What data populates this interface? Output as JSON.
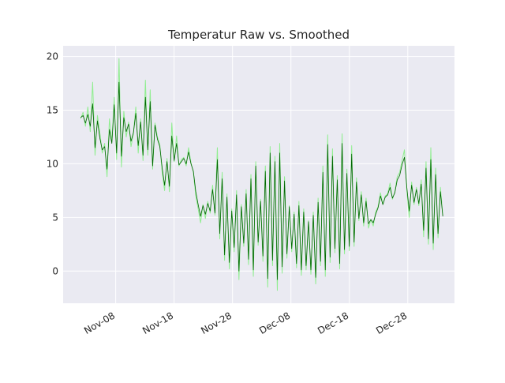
{
  "chart_data": {
    "type": "line",
    "title": "Temperatur Raw vs. Smoothed",
    "xlabel": "",
    "ylabel": "",
    "x_start": "2018-11-02",
    "x_end": "2019-01-03",
    "xlim": [
      "2018-10-30",
      "2019-01-05"
    ],
    "ylim": [
      -3,
      21
    ],
    "y_ticks": [
      0,
      5,
      10,
      15,
      20
    ],
    "x_ticks": [
      {
        "date": "2018-11-08",
        "label": "Nov-08"
      },
      {
        "date": "2018-11-18",
        "label": "Nov-18"
      },
      {
        "date": "2018-11-28",
        "label": "Nov-28"
      },
      {
        "date": "2018-12-08",
        "label": "Dec-08"
      },
      {
        "date": "2018-12-18",
        "label": "Dec-18"
      },
      {
        "date": "2018-12-28",
        "label": "Dec-28"
      }
    ],
    "grid": true,
    "legend": false,
    "style": {
      "background": "#eaeaf2",
      "grid_color": "#ffffff",
      "raw_color": "#90ee90",
      "smoothed_color": "#006400"
    },
    "series": [
      {
        "id": "raw",
        "color": "#90ee90",
        "values": [
          14.2,
          14.8,
          13.5,
          15.3,
          13.0,
          17.6,
          10.8,
          14.5,
          12.9,
          11.0,
          11.9,
          8.8,
          14.2,
          12.0,
          16.2,
          10.4,
          19.8,
          9.7,
          14.9,
          12.5,
          13.9,
          11.6,
          12.8,
          15.3,
          11.0,
          14.2,
          10.3,
          17.8,
          10.8,
          16.9,
          9.5,
          13.8,
          12.5,
          11.8,
          9.2,
          7.5,
          10.5,
          7.4,
          13.8,
          10.2,
          12.6,
          9.8,
          10.4,
          10.6,
          9.8,
          11.5,
          10.1,
          9.2,
          7.0,
          5.8,
          4.5,
          6.2,
          4.9,
          6.5,
          5.4,
          8.0,
          5.2,
          11.5,
          3.0,
          9.2,
          1.0,
          7.2,
          0.2,
          5.8,
          1.8,
          7.5,
          -0.8,
          6.2,
          2.3,
          7.6,
          0.6,
          9.0,
          -0.5,
          10.2,
          2.4,
          6.7,
          0.9,
          9.8,
          -1.5,
          11.6,
          0.5,
          10.7,
          -1.8,
          11.9,
          -0.2,
          8.8,
          1.2,
          6.1,
          1.8,
          5.5,
          0.3,
          6.5,
          -0.4,
          5.8,
          0.1,
          4.7,
          -0.3,
          5.5,
          -1.2,
          6.8,
          0.5,
          9.8,
          -0.5,
          12.7,
          0.8,
          11.4,
          1.7,
          8.9,
          0.2,
          12.8,
          1.6,
          9.5,
          1.9,
          11.7,
          2.3,
          8.7,
          4.7,
          7.4,
          4.2,
          6.8,
          4.0,
          4.8,
          4.2,
          5.5,
          6.0,
          7.3,
          6.2,
          7.0,
          7.2,
          8.2,
          6.7,
          7.4,
          8.8,
          9.2,
          10.3,
          11.3,
          7.5,
          5.0,
          8.3,
          6.2,
          7.8,
          6.1,
          8.5,
          3.2,
          10.2,
          2.5,
          11.5,
          2.0,
          9.6,
          3.1,
          7.8,
          5.2
        ]
      },
      {
        "id": "smoothed",
        "color": "#006400",
        "values": [
          14.3,
          14.5,
          13.8,
          14.6,
          13.5,
          15.6,
          11.5,
          14.0,
          12.4,
          11.3,
          11.6,
          9.5,
          13.2,
          11.9,
          15.5,
          11.0,
          17.6,
          10.7,
          14.3,
          13.0,
          13.7,
          12.1,
          12.9,
          14.7,
          11.7,
          13.9,
          10.8,
          16.2,
          11.3,
          15.8,
          9.8,
          13.6,
          12.3,
          11.6,
          9.6,
          8.0,
          10.2,
          7.9,
          12.6,
          10.3,
          11.9,
          9.9,
          10.2,
          10.5,
          10.0,
          11.1,
          10.0,
          9.3,
          7.4,
          6.2,
          5.1,
          6.1,
          5.3,
          6.3,
          5.6,
          7.6,
          5.4,
          10.4,
          3.5,
          8.6,
          1.5,
          6.9,
          0.8,
          5.6,
          2.2,
          7.1,
          0.0,
          6.0,
          2.6,
          7.2,
          1.1,
          8.6,
          0.1,
          9.8,
          2.7,
          6.5,
          1.4,
          9.3,
          -0.7,
          11.0,
          1.0,
          10.2,
          -0.8,
          11.0,
          0.4,
          8.4,
          1.6,
          6.0,
          2.1,
          5.3,
          0.7,
          6.1,
          0.1,
          5.5,
          0.5,
          4.6,
          0.1,
          5.2,
          -0.6,
          6.4,
          0.9,
          9.2,
          0.1,
          11.8,
          1.3,
          10.7,
          2.1,
          8.5,
          0.7,
          11.9,
          2.0,
          9.1,
          2.3,
          10.9,
          2.7,
          8.3,
          4.9,
          7.1,
          4.5,
          6.5,
          4.4,
          4.8,
          4.5,
          5.3,
          5.9,
          7.0,
          6.2,
          6.9,
          7.1,
          7.8,
          6.8,
          7.3,
          8.5,
          8.9,
          9.9,
          10.6,
          7.8,
          5.6,
          8.0,
          6.4,
          7.6,
          6.3,
          8.1,
          3.8,
          9.6,
          3.0,
          10.4,
          2.6,
          9.0,
          3.5,
          7.4,
          5.1
        ]
      }
    ]
  }
}
